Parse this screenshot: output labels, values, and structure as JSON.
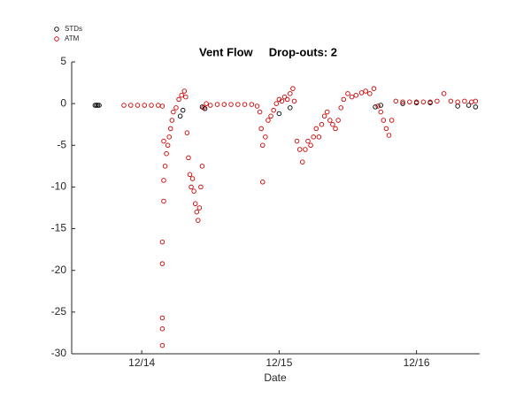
{
  "chart_data": {
    "type": "scatter",
    "title": "Vent Flow     Drop-outs: 2",
    "xlabel": "Date",
    "xlim": [
      13.49,
      16.46
    ],
    "ylim": [
      -30,
      5
    ],
    "xticks": [
      {
        "value": 14,
        "label": "12/14"
      },
      {
        "value": 15,
        "label": "12/15"
      },
      {
        "value": 16,
        "label": "12/16"
      }
    ],
    "yticks": [
      5,
      0,
      -5,
      -10,
      -15,
      -20,
      -25,
      -30
    ],
    "legend": "top-left",
    "series": [
      {
        "name": "STDs",
        "color": "#000000",
        "x": [
          13.66,
          13.67,
          13.68,
          13.69,
          14.28,
          14.3,
          14.44,
          14.46,
          15.0,
          15.08,
          15.7,
          15.74,
          15.9,
          16.0,
          16.1,
          16.3,
          16.38,
          16.43
        ],
        "values": [
          -0.2,
          -0.2,
          -0.2,
          -0.2,
          -1.5,
          -0.8,
          -0.4,
          -0.6,
          -1.2,
          -0.5,
          -0.4,
          -0.2,
          0,
          0.1,
          0.1,
          -0.3,
          -0.2,
          -0.4
        ]
      },
      {
        "name": "ATM",
        "color": "#cc0000",
        "x": [
          13.87,
          13.92,
          13.97,
          14.02,
          14.07,
          14.12,
          14.15,
          14.15,
          14.15,
          14.15,
          14.15,
          14.15,
          14.16,
          14.16,
          14.16,
          14.17,
          14.18,
          14.19,
          14.2,
          14.21,
          14.22,
          14.23,
          14.25,
          14.27,
          14.29,
          14.31,
          14.32,
          14.33,
          14.34,
          14.35,
          14.36,
          14.37,
          14.38,
          14.39,
          14.4,
          14.41,
          14.42,
          14.43,
          14.44,
          14.45,
          14.47,
          14.5,
          14.55,
          14.6,
          14.65,
          14.7,
          14.75,
          14.8,
          14.84,
          14.86,
          14.87,
          14.88,
          14.88,
          14.9,
          14.92,
          14.94,
          14.96,
          14.98,
          15.0,
          15.02,
          15.04,
          15.06,
          15.08,
          15.1,
          15.11,
          15.13,
          15.15,
          15.17,
          15.19,
          15.21,
          15.23,
          15.25,
          15.27,
          15.29,
          15.31,
          15.33,
          15.35,
          15.37,
          15.39,
          15.41,
          15.43,
          15.45,
          15.47,
          15.5,
          15.53,
          15.56,
          15.6,
          15.63,
          15.66,
          15.69,
          15.72,
          15.74,
          15.76,
          15.78,
          15.8,
          15.82,
          15.85,
          15.9,
          15.95,
          16.0,
          16.05,
          16.1,
          16.15,
          16.2,
          16.25,
          16.3,
          16.35,
          16.4,
          16.43
        ],
        "values": [
          -0.2,
          -0.2,
          -0.2,
          -0.2,
          -0.2,
          -0.2,
          -0.3,
          -29,
          -27,
          -25.7,
          -19.2,
          -16.6,
          -11.7,
          -9.2,
          -4.5,
          -7.5,
          -6,
          -5,
          -4,
          -3,
          -2,
          -1,
          -0.5,
          0.5,
          1,
          1.5,
          0.8,
          -3.5,
          -6.5,
          -8.5,
          -10,
          -9,
          -10.5,
          -12,
          -13,
          -14,
          -12.5,
          -10,
          -7.5,
          -0.5,
          0,
          -0.2,
          -0.1,
          -0.1,
          -0.1,
          -0.1,
          -0.1,
          -0.1,
          -0.3,
          -1,
          -3,
          -5,
          -9.4,
          -4,
          -2,
          -1.5,
          -0.8,
          0,
          0.5,
          0.3,
          0.8,
          0.5,
          1.2,
          1.8,
          0.3,
          -4.5,
          -5.5,
          -7,
          -5.5,
          -4.5,
          -5,
          -4,
          -3,
          -4,
          -2.5,
          -1.5,
          -1,
          -2,
          -2.5,
          -3,
          -2,
          -0.5,
          0.5,
          1.2,
          0.8,
          1,
          1.3,
          1.5,
          1.2,
          1.8,
          -0.3,
          -1,
          -2,
          -3,
          -3.8,
          -2,
          0.3,
          0.2,
          0.2,
          0.2,
          0.2,
          0.2,
          0.3,
          1.2,
          0.3,
          0.2,
          0.3,
          0.2,
          0.3
        ]
      }
    ]
  }
}
